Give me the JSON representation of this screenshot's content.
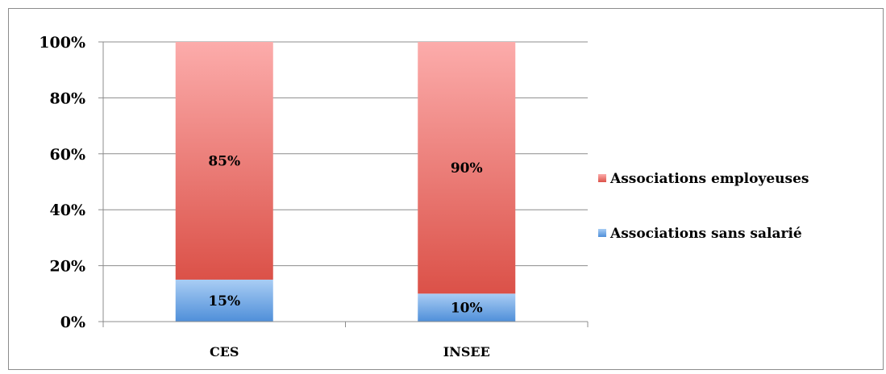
{
  "chart_data": {
    "type": "bar",
    "stacked": true,
    "percent_stacked": true,
    "categories": [
      "CES",
      "INSEE"
    ],
    "series": [
      {
        "name": "Associations sans salarié",
        "values": [
          15,
          10
        ],
        "labels": [
          "15%",
          "10%"
        ],
        "color_top": "#a9cdf4",
        "color_bottom": "#4f8fd9"
      },
      {
        "name": "Associations employeuses",
        "values": [
          85,
          90
        ],
        "labels": [
          "85%",
          "90%"
        ],
        "color_top": "#fcacab",
        "color_bottom": "#db5148"
      }
    ],
    "ylim": [
      0,
      100
    ],
    "yticks": [
      "0%",
      "20%",
      "40%",
      "60%",
      "80%",
      "100%"
    ],
    "grid": true,
    "legend_position": "right",
    "legend_order": [
      "Associations employeuses",
      "Associations sans salarié"
    ]
  }
}
